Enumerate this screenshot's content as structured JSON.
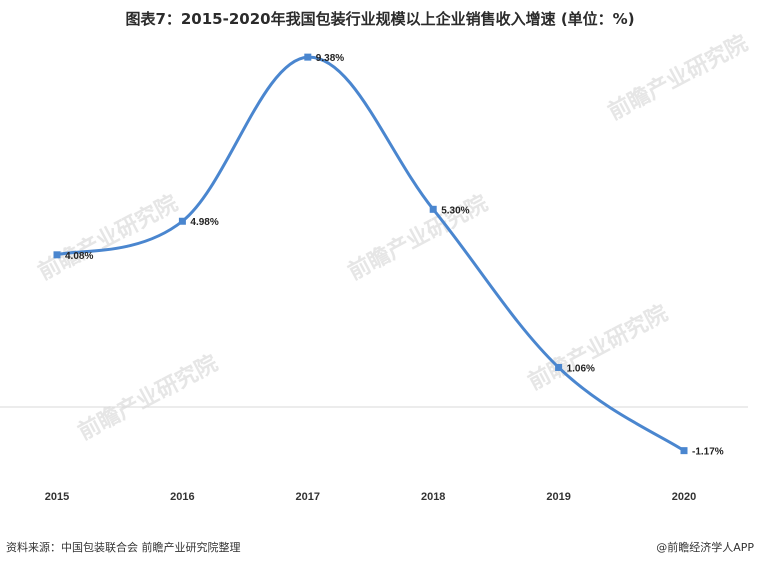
{
  "chart_data": {
    "type": "line",
    "title": "图表7：2015-2020年我国包装行业规模以上企业销售收入增速 (单位：%)",
    "categories": [
      "2015",
      "2016",
      "2017",
      "2018",
      "2019",
      "2020"
    ],
    "series": [
      {
        "values": [
          4.08,
          4.98,
          9.38,
          5.3,
          1.06,
          -1.17
        ]
      }
    ],
    "data_labels": [
      "4.08%",
      "4.98%",
      "9.38%",
      "5.30%",
      "1.06%",
      "-1.17%"
    ],
    "ylim": [
      -2,
      10
    ],
    "baseline": 0,
    "grid": false,
    "line_color": "#4a86cf",
    "marker": "square",
    "smooth": true
  },
  "watermark": {
    "text": "前瞻产业研究院"
  },
  "footer": {
    "source": "资料来源：中国包装联合会 前瞻产业研究院整理",
    "brand": "@前瞻经济学人APP"
  }
}
